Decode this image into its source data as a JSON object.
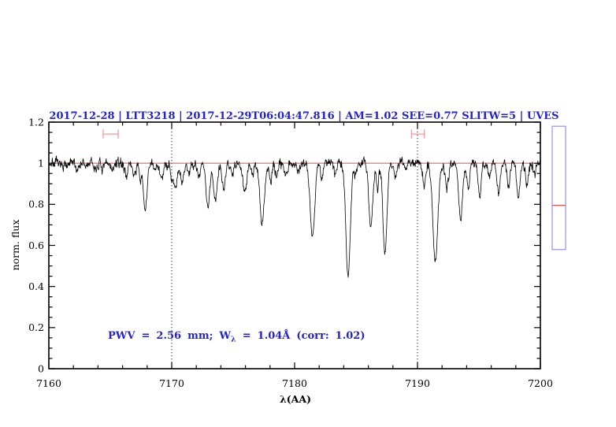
{
  "title": "2017-12-28 | LTT3218 | 2017-12-29T06:04:47.816 | AM=1.02 SEE=0.77 SLITW=5 | UVES",
  "annotation": {
    "pre": "PWV = 2.56 mm; W",
    "sub": "λ",
    "post": " = 1.04Å (corr: 1.02)"
  },
  "colors": {
    "title_blue": "#2323cd",
    "continuum_red": "#d95050",
    "marker_salmon": "#f09c9c",
    "gauge_blue": "#9292ee",
    "gauge_red": "#e05555",
    "spectrum": "#000000"
  },
  "chart_data": {
    "type": "line",
    "title": "2017-12-28 | LTT3218 | 2017-12-29T06:04:47.816 | AM=1.02 SEE=0.77 SLITW=5 | UVES",
    "xlabel": "λ(AA)",
    "ylabel": "norm. flux",
    "xlim": [
      7160,
      7200
    ],
    "ylim": [
      0,
      1.2
    ],
    "x_major_ticks": [
      7160,
      7170,
      7180,
      7190,
      7200
    ],
    "x_tick_labels": [
      "7160",
      "7170",
      "7180",
      "7190",
      "7200"
    ],
    "x_minor_step": 2,
    "y_major_ticks": [
      0,
      0.2,
      0.4,
      0.6,
      0.8,
      1,
      1.2
    ],
    "y_tick_labels": [
      "0",
      "0.2",
      "0.4",
      "0.6",
      "0.8",
      "1",
      "1.2"
    ],
    "y_minor_step": 0.05,
    "grid": false,
    "legend": "none",
    "continuum_flux": 1.0,
    "noise_sigma": 0.011,
    "seed": 7,
    "dotted_vlines": [
      7170,
      7190
    ],
    "wlambda_markers": [
      {
        "center": 7165.03,
        "halfwidth_aa": 0.61,
        "flux": 1.142
      },
      {
        "center": 7190.03,
        "halfwidth_aa": 0.52,
        "flux": 1.142
      }
    ],
    "side_gauge": {
      "flux_top": 1.18,
      "flux_bottom": 0.58,
      "marker_flux": 0.795
    },
    "absorption_lines": [
      [
        7161.0,
        0.02,
        0.1
      ],
      [
        7161.5,
        0.025,
        0.1
      ],
      [
        7162.3,
        0.03,
        0.12
      ],
      [
        7163.0,
        0.02,
        0.1
      ],
      [
        7163.8,
        0.03,
        0.12
      ],
      [
        7164.4,
        0.035,
        0.12
      ],
      [
        7165.2,
        0.035,
        0.12
      ],
      [
        7166.3,
        0.05,
        0.15
      ],
      [
        7166.95,
        0.055,
        0.13
      ],
      [
        7167.45,
        0.09,
        0.1
      ],
      [
        7167.85,
        0.235,
        0.14
      ],
      [
        7168.6,
        0.04,
        0.1
      ],
      [
        7169.2,
        0.075,
        0.15
      ],
      [
        7170.0,
        0.06,
        0.1
      ],
      [
        7170.3,
        0.12,
        0.14
      ],
      [
        7170.85,
        0.1,
        0.13
      ],
      [
        7171.4,
        0.05,
        0.1
      ],
      [
        7172.2,
        0.06,
        0.12
      ],
      [
        7172.95,
        0.21,
        0.16
      ],
      [
        7173.55,
        0.18,
        0.14
      ],
      [
        7174.25,
        0.13,
        0.13
      ],
      [
        7174.9,
        0.055,
        0.1
      ],
      [
        7175.95,
        0.125,
        0.17
      ],
      [
        7176.6,
        0.06,
        0.1
      ],
      [
        7177.35,
        0.3,
        0.18
      ],
      [
        7178.05,
        0.09,
        0.12
      ],
      [
        7178.5,
        0.07,
        0.1
      ],
      [
        7179.3,
        0.05,
        0.12
      ],
      [
        7180.3,
        0.045,
        0.1
      ],
      [
        7181.45,
        0.36,
        0.18
      ],
      [
        7182.2,
        0.07,
        0.1
      ],
      [
        7183.3,
        0.05,
        0.1
      ],
      [
        7184.35,
        0.55,
        0.18
      ],
      [
        7185.0,
        0.05,
        0.1
      ],
      [
        7186.2,
        0.305,
        0.16
      ],
      [
        7186.75,
        0.13,
        0.1
      ],
      [
        7187.35,
        0.44,
        0.16
      ],
      [
        7188.2,
        0.06,
        0.1
      ],
      [
        7189.0,
        0.03,
        0.1
      ],
      [
        7190.55,
        0.1,
        0.13
      ],
      [
        7191.45,
        0.48,
        0.2
      ],
      [
        7192.4,
        0.12,
        0.13
      ],
      [
        7193.5,
        0.27,
        0.16
      ],
      [
        7194.15,
        0.12,
        0.11
      ],
      [
        7195.05,
        0.15,
        0.13
      ],
      [
        7195.85,
        0.07,
        0.1
      ],
      [
        7196.6,
        0.14,
        0.13
      ],
      [
        7197.4,
        0.12,
        0.11
      ],
      [
        7198.2,
        0.16,
        0.13
      ],
      [
        7198.9,
        0.1,
        0.11
      ],
      [
        7199.5,
        0.06,
        0.1
      ]
    ]
  }
}
